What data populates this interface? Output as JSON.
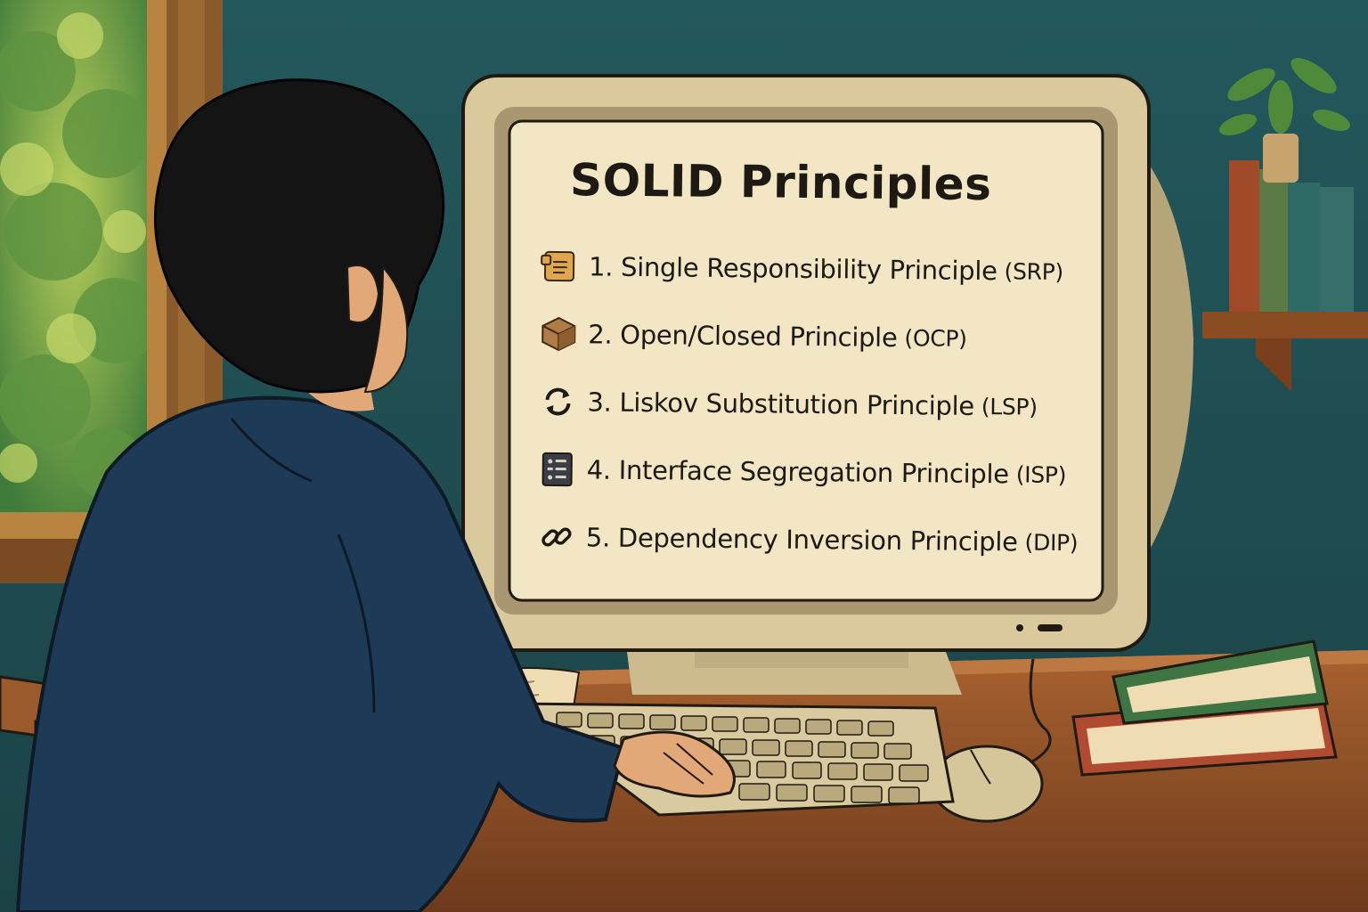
{
  "screen": {
    "title": "SOLID Principles",
    "principles": [
      {
        "text": "1. Single Responsibility Principle",
        "abbr": "(SRP)",
        "icon": "document-icon"
      },
      {
        "text": "2. Open/Closed Principle",
        "abbr": "(OCP)",
        "icon": "box-icon"
      },
      {
        "text": "3. Liskov Substitution Principle",
        "abbr": "(LSP)",
        "icon": "cycle-arrows-icon"
      },
      {
        "text": "4. Interface Segregation Principle",
        "abbr": "(ISP)",
        "icon": "interface-panel-icon"
      },
      {
        "text": "5. Dependency Inversion Principle",
        "abbr": "(DIP)",
        "icon": "link-icon"
      }
    ]
  },
  "colors": {
    "wall": "#22555a",
    "screen_bg": "#f3e6c4",
    "monitor_bezel": "#d8c79a",
    "desk": "#9c5a2e",
    "shirt": "#1d3b57",
    "hair": "#141414"
  }
}
